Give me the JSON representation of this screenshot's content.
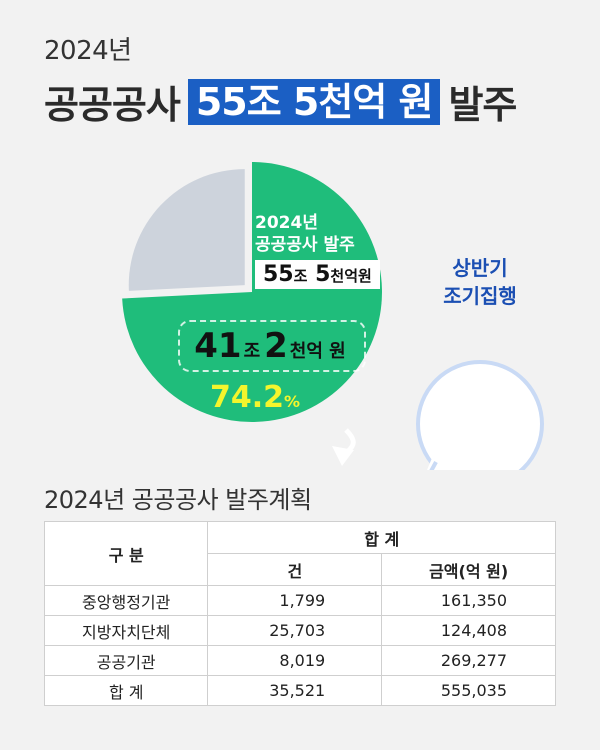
{
  "header": {
    "year": "2024년",
    "title_pre": "공공공사",
    "title_highlight": "55조 5천억 원",
    "title_post": "발주"
  },
  "chart_data": {
    "type": "pie",
    "segments": [
      {
        "label": "상반기",
        "percent": 74.2,
        "color": "#1fbd7b"
      },
      {
        "label": "",
        "percent": 25.8,
        "color": "#cdd3dc"
      }
    ],
    "label_line1": "2024년",
    "label_line2": "공공공사 발주",
    "total_num1": "55",
    "total_unit1": "조",
    "total_num2": "5",
    "total_unit2": "천억원",
    "amount_num1": "41",
    "amount_unit1": "조",
    "amount_num2": "2",
    "amount_unit2": "천억 원",
    "percent_value": "74.2",
    "percent_unit": "%"
  },
  "bubble": {
    "line1": "상반기",
    "line2": "조기집행",
    "fill": "#ffffff",
    "stroke": "#c9daf5"
  },
  "plan": {
    "title": "2024년 공공공사 발주계획",
    "col_category": "구 분",
    "col_total": "합 계",
    "col_count": "건",
    "col_amount": "금액(억 원)",
    "rows": [
      {
        "name": "중앙행정기관",
        "count": "1,799",
        "amount": "161,350"
      },
      {
        "name": "지방자치단체",
        "count": "25,703",
        "amount": "124,408"
      },
      {
        "name": "공공기관",
        "count": "8,019",
        "amount": "269,277"
      },
      {
        "name": "합 계",
        "count": "35,521",
        "amount": "555,035"
      }
    ]
  }
}
